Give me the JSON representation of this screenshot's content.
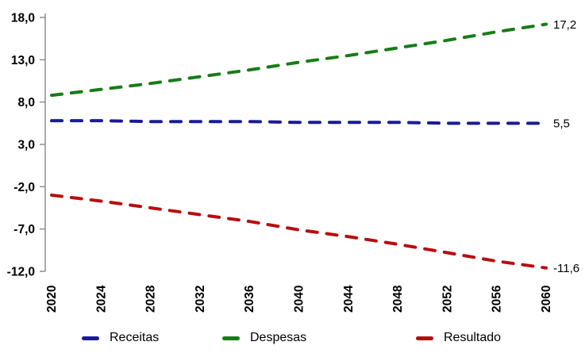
{
  "chart_data": {
    "type": "line",
    "title": "",
    "xlabel": "",
    "ylabel": "",
    "categories": [
      "2020",
      "2024",
      "2028",
      "2032",
      "2036",
      "2040",
      "2044",
      "2048",
      "2052",
      "2056",
      "2060"
    ],
    "ylim": [
      -12,
      18
    ],
    "grid": false,
    "legend_position": "bottom",
    "axis_color": "#8E8E8E",
    "label_color": "#000000",
    "background": "#ffffff",
    "y_ticks": [
      {
        "value": 18,
        "label": "18,0"
      },
      {
        "value": 13,
        "label": "13,0"
      },
      {
        "value": 8,
        "label": "8,0"
      },
      {
        "value": 3,
        "label": "3,0"
      },
      {
        "value": -2,
        "label": "-2,0"
      },
      {
        "value": -7,
        "label": "-7,0"
      },
      {
        "value": -12,
        "label": "-12,0"
      }
    ],
    "series": [
      {
        "name": "Receitas",
        "color": "#1B1B96",
        "line_style": "dashed",
        "values": [
          5.8,
          5.8,
          5.7,
          5.7,
          5.7,
          5.6,
          5.6,
          5.6,
          5.5,
          5.5,
          5.5
        ],
        "end_label": "5,5"
      },
      {
        "name": "Despesas",
        "color": "#177C17",
        "line_style": "dashed",
        "values": [
          8.8,
          9.5,
          10.2,
          11.0,
          11.8,
          12.7,
          13.5,
          14.4,
          15.3,
          16.3,
          17.2
        ],
        "end_label": "17,2"
      },
      {
        "name": "Resultado",
        "color": "#B80D10",
        "line_style": "dashed",
        "values": [
          -3.0,
          -3.7,
          -4.5,
          -5.3,
          -6.1,
          -7.1,
          -7.9,
          -8.8,
          -9.8,
          -10.8,
          -11.6
        ],
        "end_label": "-11,6"
      }
    ]
  }
}
